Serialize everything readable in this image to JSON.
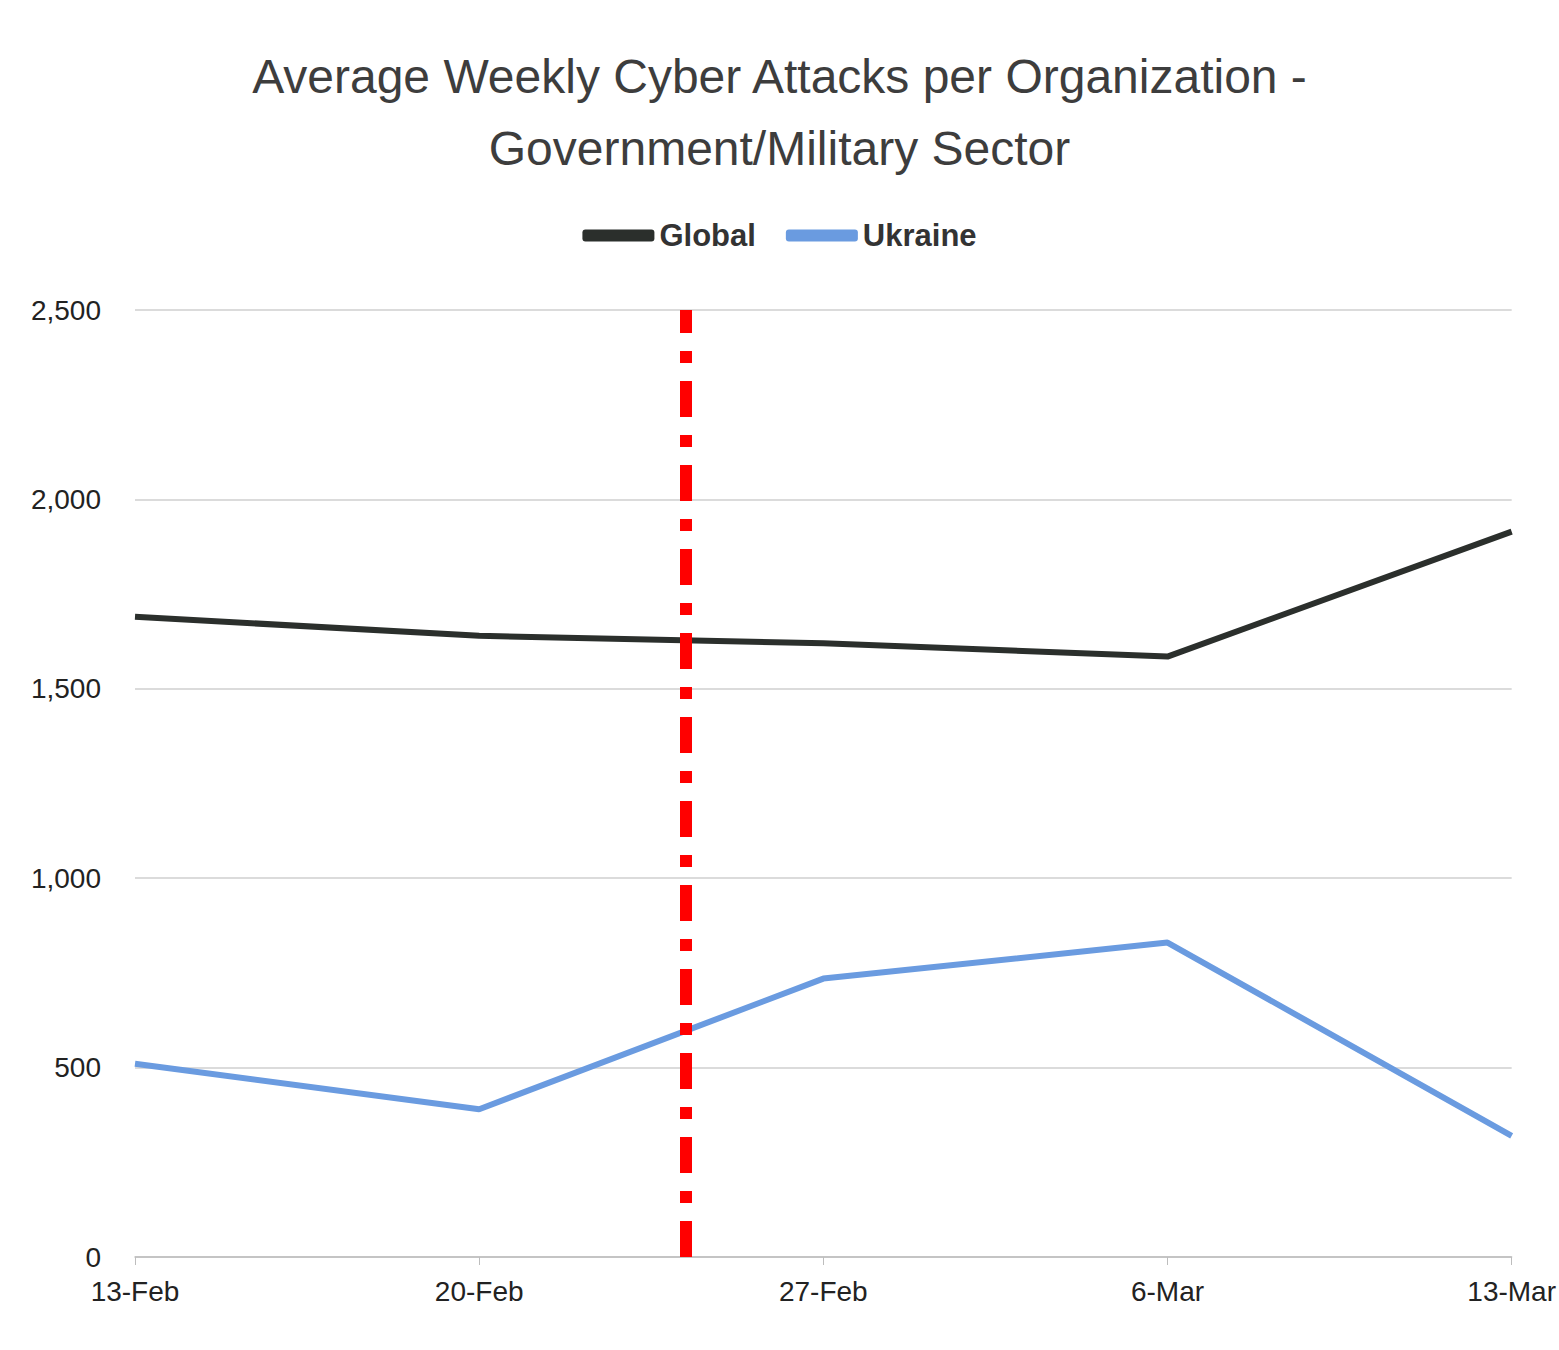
{
  "chart_data": {
    "type": "line",
    "title": "Average Weekly Cyber Attacks per Organization -\nGovernment/Military Sector",
    "categories": [
      "13-Feb",
      "20-Feb",
      "27-Feb",
      "6-Mar",
      "13-Mar"
    ],
    "series": [
      {
        "name": "Global",
        "color": "#2b2f2c",
        "values": [
          1690,
          1640,
          1620,
          1585,
          1915
        ]
      },
      {
        "name": "Ukraine",
        "color": "#6a9be0",
        "values": [
          510,
          390,
          735,
          830,
          320
        ]
      }
    ],
    "ylim": [
      0,
      2500
    ],
    "yticks": [
      0,
      500,
      1000,
      1500,
      2000,
      2500
    ],
    "grid": true,
    "legend": "top",
    "annotations": [
      {
        "type": "vline",
        "after": "20-Feb",
        "offset": 0.6,
        "color": "#ff0000",
        "line_style": "dashdot"
      }
    ]
  }
}
